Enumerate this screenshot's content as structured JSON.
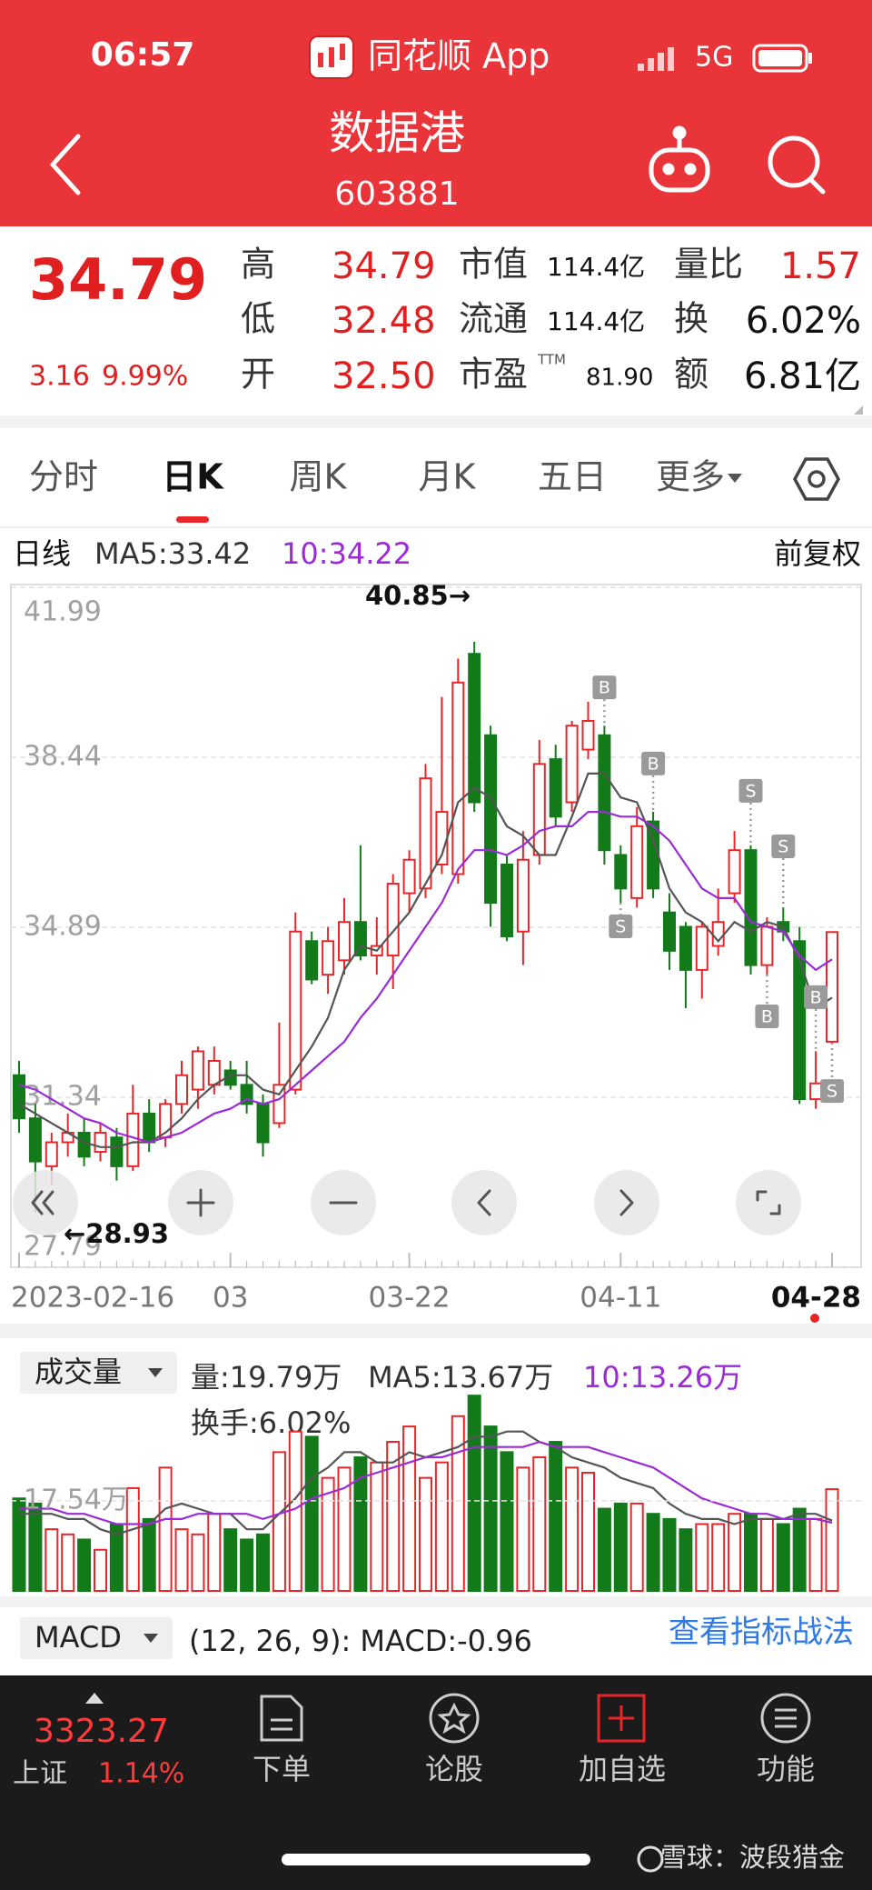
{
  "status_bar": {
    "time": "06:57",
    "app": "同花顺 App",
    "network": "5G"
  },
  "header": {
    "title": "数据港",
    "code": "603881"
  },
  "quote": {
    "price": "34.79",
    "change": "3.16",
    "change_pct": "9.99%",
    "stats": [
      [
        {
          "label": "高",
          "value": "34.79"
        },
        {
          "label": "低",
          "value": "32.48"
        },
        {
          "label": "开",
          "value": "32.50"
        }
      ],
      [
        {
          "label": "市值",
          "value": "114.4亿"
        },
        {
          "label": "流通",
          "value": "114.4亿"
        },
        {
          "label": "市盈",
          "sup": "TTM",
          "value": "81.90"
        }
      ],
      [
        {
          "label": "量比",
          "value": "1.57"
        },
        {
          "label": "换",
          "value": "6.02%"
        },
        {
          "label": "额",
          "value": "6.81亿"
        }
      ]
    ]
  },
  "tabs": {
    "items": [
      "分时",
      "日K",
      "周K",
      "月K",
      "五日",
      "更多"
    ],
    "selected": 1
  },
  "kline": {
    "label": "日线",
    "ma5_label": "MA5:33.42",
    "ma10_label": "10:34.22",
    "adjust": "前复权",
    "high_note": "40.85→",
    "low_note": "←28.93",
    "ylim": [
      27.79,
      41.99
    ],
    "yticks": [
      41.99,
      38.44,
      34.89,
      31.34,
      27.79
    ],
    "grid": true,
    "up_color": "#e8262a",
    "down_color": "#137a1a",
    "ma5_color": "#555555",
    "ma10_color": "#9b2bd6",
    "dates": [
      "2023-02-16",
      null,
      null,
      null,
      null,
      null,
      null,
      null,
      null,
      null,
      null,
      null,
      null,
      "03",
      null,
      null,
      null,
      null,
      null,
      null,
      null,
      null,
      null,
      null,
      "03-22",
      null,
      null,
      null,
      null,
      null,
      null,
      null,
      null,
      null,
      null,
      null,
      null,
      "04-11",
      null,
      null,
      null,
      null,
      null,
      null,
      null,
      null,
      null,
      null,
      null,
      null,
      "04-28"
    ],
    "open": [
      31.8,
      30.9,
      29.9,
      30.4,
      30.6,
      30.2,
      30.5,
      29.9,
      31.0,
      30.5,
      31.2,
      31.5,
      31.6,
      31.9,
      31.6,
      31.2,
      30.8,
      31.5,
      34.6,
      33.9,
      34.2,
      35.0,
      34.3,
      34.3,
      35.6,
      35.7,
      36.2,
      36.0,
      40.6,
      38.9,
      36.2,
      34.8,
      36.4,
      38.4,
      37.5,
      38.6,
      38.9,
      36.4,
      35.5,
      37.1,
      35.2,
      34.9,
      34.0,
      34.5,
      35.6,
      36.5,
      34.1,
      35.0,
      34.6,
      31.3,
      32.5
    ],
    "high": [
      32.1,
      31.2,
      30.6,
      31.0,
      30.9,
      30.8,
      30.7,
      31.6,
      31.3,
      31.3,
      32.1,
      32.4,
      32.4,
      32.1,
      32.1,
      31.4,
      32.9,
      35.2,
      34.8,
      34.9,
      35.5,
      36.6,
      35.1,
      36.0,
      36.5,
      38.3,
      39.7,
      40.5,
      40.85,
      39.1,
      36.4,
      36.9,
      38.8,
      38.7,
      39.2,
      39.6,
      39.1,
      36.6,
      37.4,
      37.3,
      35.6,
      35.0,
      35.0,
      35.7,
      36.9,
      36.6,
      35.1,
      35.3,
      34.9,
      32.3,
      34.79
    ],
    "low": [
      30.6,
      28.93,
      29.5,
      30.1,
      29.9,
      30.0,
      29.6,
      29.8,
      30.2,
      30.3,
      31.0,
      31.1,
      31.4,
      31.5,
      31.0,
      30.1,
      30.7,
      31.4,
      33.7,
      33.5,
      33.9,
      34.2,
      33.9,
      33.6,
      35.2,
      35.5,
      36.0,
      35.8,
      37.3,
      34.9,
      34.6,
      34.1,
      36.2,
      37.0,
      37.3,
      38.4,
      36.2,
      35.4,
      35.3,
      35.5,
      34.0,
      33.2,
      33.4,
      34.3,
      35.4,
      33.9,
      33.9,
      34.6,
      31.2,
      31.1,
      32.48
    ],
    "close": [
      30.9,
      30.0,
      30.4,
      30.6,
      30.1,
      30.6,
      29.9,
      31.0,
      30.4,
      31.2,
      31.8,
      32.3,
      32.1,
      31.6,
      31.2,
      30.4,
      31.6,
      34.8,
      33.8,
      34.6,
      35.0,
      34.3,
      34.5,
      35.8,
      36.3,
      38.0,
      37.3,
      40.0,
      37.5,
      35.4,
      34.7,
      36.3,
      38.3,
      37.2,
      39.1,
      39.2,
      36.5,
      35.7,
      37.0,
      35.7,
      34.4,
      34.0,
      34.9,
      35.0,
      36.5,
      34.1,
      34.9,
      34.8,
      31.3,
      31.63,
      34.79
    ],
    "ma5": [
      31.2,
      31.0,
      30.8,
      30.6,
      30.4,
      30.3,
      30.3,
      30.4,
      30.4,
      30.6,
      30.9,
      31.3,
      31.6,
      31.8,
      31.8,
      31.5,
      31.4,
      31.9,
      32.4,
      33.0,
      34.0,
      34.5,
      34.4,
      34.8,
      35.2,
      35.8,
      36.4,
      37.5,
      37.8,
      37.6,
      37.0,
      36.8,
      36.4,
      36.4,
      37.2,
      38.1,
      38.1,
      37.6,
      37.5,
      36.7,
      35.7,
      35.2,
      35.0,
      34.6,
      35.0,
      34.8,
      35.0,
      34.9,
      34.2,
      33.2,
      33.42
    ],
    "ma10": [
      31.6,
      31.5,
      31.3,
      31.1,
      30.9,
      30.8,
      30.6,
      30.5,
      30.4,
      30.5,
      30.6,
      30.8,
      31.0,
      31.1,
      31.3,
      31.2,
      31.3,
      31.6,
      31.9,
      32.2,
      32.5,
      33.0,
      33.4,
      33.9,
      34.4,
      34.9,
      35.4,
      36.1,
      36.5,
      36.5,
      36.4,
      36.6,
      36.9,
      37.0,
      37.0,
      37.3,
      37.3,
      37.2,
      37.2,
      37.0,
      36.7,
      36.2,
      35.7,
      35.5,
      35.5,
      35.0,
      34.9,
      34.8,
      34.3,
      34.0,
      34.22
    ],
    "signals": [
      {
        "label": "B",
        "candle": 36,
        "price": 39.9
      },
      {
        "label": "S",
        "candle": 37,
        "price": 34.91
      },
      {
        "label": "B",
        "candle": 39,
        "price": 38.31
      },
      {
        "label": "S",
        "candle": 45,
        "price": 37.74
      },
      {
        "label": "B",
        "candle": 46,
        "price": 33.03
      },
      {
        "label": "S",
        "candle": 47,
        "price": 36.58
      },
      {
        "label": "B",
        "candle": 49,
        "price": 33.43
      },
      {
        "label": "S",
        "candle": 50,
        "price": 31.47
      }
    ]
  },
  "volume": {
    "label": "成交量",
    "vol_label": "量:19.79万",
    "ma5_label": "MA5:13.67万",
    "ma10_label": "10:13.26万",
    "turnover": "换手:6.02%",
    "ylim": [
      0,
      39.8
    ],
    "yticks": [
      {
        "value": 17.54,
        "label": "17.54万"
      }
    ],
    "values": [
      18,
      17,
      12,
      11,
      10,
      8,
      13,
      20,
      14,
      24,
      12,
      11,
      15,
      12,
      10,
      11,
      27,
      31,
      30,
      22,
      24,
      26,
      25,
      29,
      32,
      22,
      25,
      34,
      38,
      32,
      27,
      24,
      26,
      29,
      24,
      23,
      16,
      17,
      17,
      15,
      14,
      12,
      13,
      13,
      15,
      15,
      14,
      13,
      16,
      14,
      19.79
    ],
    "ma5": [
      15,
      15,
      15,
      14,
      14,
      12,
      11,
      12,
      13,
      16,
      17,
      16,
      15,
      15,
      12,
      12,
      15,
      18,
      22,
      24,
      27,
      27,
      25,
      25,
      27,
      26,
      27,
      28,
      30,
      30,
      31,
      31,
      29,
      28,
      26,
      25,
      24,
      22,
      21,
      20,
      17,
      15,
      14,
      14,
      13,
      14,
      14,
      14,
      15,
      15,
      13.67
    ],
    "ma10": [
      16,
      16,
      16,
      15,
      15,
      14,
      13,
      13,
      13,
      14,
      14,
      15,
      15,
      15,
      15,
      14,
      15,
      16,
      18,
      19,
      20,
      22,
      23,
      24,
      25,
      26,
      26,
      27,
      28,
      28,
      28,
      28,
      29,
      28,
      28,
      28,
      27,
      26,
      25,
      24,
      22,
      20,
      18,
      17,
      16,
      15,
      15,
      14,
      14,
      14,
      13.26
    ]
  },
  "macd": {
    "label": "MACD",
    "params": "(12, 26, 9): MACD:-0.96",
    "link": "查看指标战法"
  },
  "bottom_bar": {
    "index_value": "3323.27",
    "index_name": "上证",
    "index_pct": "1.14%",
    "nav": [
      "下单",
      "论股",
      "加自选",
      "功能"
    ],
    "watermark": "雪球：波段猎金"
  }
}
